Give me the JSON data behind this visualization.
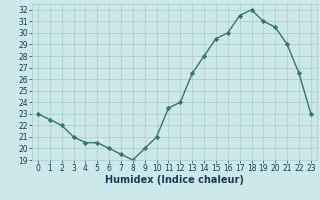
{
  "x": [
    0,
    1,
    2,
    3,
    4,
    5,
    6,
    7,
    8,
    9,
    10,
    11,
    12,
    13,
    14,
    15,
    16,
    17,
    18,
    19,
    20,
    21,
    22,
    23
  ],
  "y": [
    23.0,
    22.5,
    22.0,
    21.0,
    20.5,
    20.5,
    20.0,
    19.5,
    19.0,
    20.0,
    21.0,
    23.5,
    24.0,
    26.5,
    28.0,
    29.5,
    30.0,
    31.5,
    32.0,
    31.0,
    30.5,
    29.0,
    26.5,
    23.0
  ],
  "xlabel": "Humidex (Indice chaleur)",
  "xlim": [
    -0.5,
    23.5
  ],
  "ylim": [
    19,
    32.5
  ],
  "yticks": [
    19,
    20,
    21,
    22,
    23,
    24,
    25,
    26,
    27,
    28,
    29,
    30,
    31,
    32
  ],
  "xticks": [
    0,
    1,
    2,
    3,
    4,
    5,
    6,
    7,
    8,
    9,
    10,
    11,
    12,
    13,
    14,
    15,
    16,
    17,
    18,
    19,
    20,
    21,
    22,
    23
  ],
  "line_color": "#2d7a6a",
  "marker": "D",
  "marker_size": 2.2,
  "bg_color": "#cde8e8",
  "grid_color": "#aacccc",
  "font_color": "#1a3a5c",
  "xlabel_fontsize": 7,
  "tick_fontsize": 5.5,
  "linewidth": 1.0
}
